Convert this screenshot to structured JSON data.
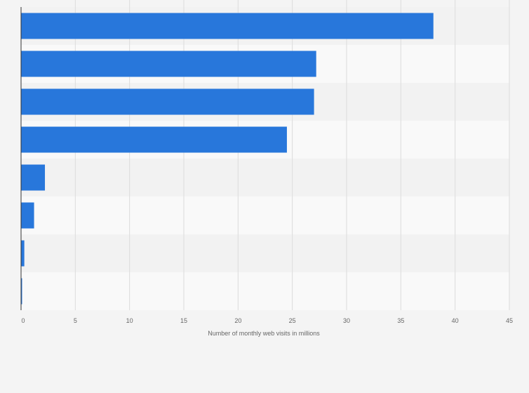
{
  "chart_data": {
    "type": "bar",
    "orientation": "horizontal",
    "categories": [
      "",
      "",
      "",
      "",
      "",
      "",
      "",
      ""
    ],
    "values": [
      38,
      27.2,
      27,
      24.5,
      2.2,
      1.2,
      0.3,
      0.05
    ],
    "title": "",
    "xlabel": "Number of monthly web visits in millions",
    "ylabel": "",
    "xlim": [
      0,
      45
    ],
    "xticks": [
      0,
      5,
      10,
      15,
      20,
      25,
      30,
      35,
      40,
      45
    ],
    "xtick_labels": [
      "0",
      "5",
      "10",
      "15",
      "20",
      "25",
      "30",
      "35",
      "40",
      "45"
    ],
    "grid": true,
    "colors": {
      "bar": "#2877db",
      "band_light": "#f9f9f9",
      "band_dark": "#f2f2f2",
      "grid": "#dcdcdc",
      "axis": "#333333"
    }
  }
}
